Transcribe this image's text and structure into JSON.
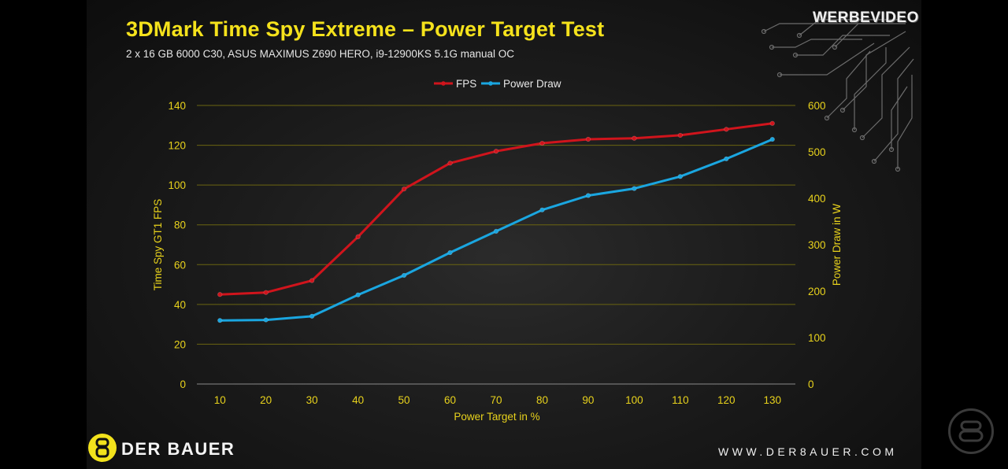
{
  "header": {
    "title": "3DMark Time Spy Extreme – Power Target Test",
    "subtitle": "2 x 16 GB 6000 C30, ASUS MAXIMUS Z690 HERO, i9-12900KS 5.1G manual OC"
  },
  "watermark": {
    "text": "WERBEVIDEO",
    "icon": "derbauer-8-badge-icon"
  },
  "footer": {
    "brand_name": "DER BAUER",
    "brand_icon": "derbauer-8-badge-icon",
    "url": "WWW.DER8AUER.COM"
  },
  "side_logo_icon": "derbauer-8-outline-icon",
  "colors": {
    "title": "#f5e21c",
    "axis_text": "#e8d21c",
    "fps_series": "#d0141c",
    "power_series": "#1aa6e0",
    "gridline": "#6b6510"
  },
  "chart_data": {
    "type": "line",
    "title": "3DMark Time Spy Extreme – Power Target Test",
    "subtitle": "2 x 16 GB 6000 C30, ASUS MAXIMUS Z690 HERO, i9-12900KS 5.1G manual OC",
    "xlabel": "Power Target in %",
    "ylabel": "Time Spy GT1 FPS",
    "y2label": "Power Draw in W",
    "x": [
      10,
      20,
      30,
      40,
      50,
      60,
      70,
      80,
      90,
      100,
      110,
      120,
      130
    ],
    "ylim": [
      0,
      140
    ],
    "yticks": [
      0,
      20,
      40,
      60,
      80,
      100,
      120,
      140
    ],
    "y2lim": [
      0,
      600
    ],
    "y2ticks": [
      0,
      100,
      200,
      300,
      400,
      500,
      600
    ],
    "grid": "horizontal",
    "legend_position": "top-center",
    "series": [
      {
        "name": "FPS",
        "axis": "left",
        "color": "#d0141c",
        "values": [
          45,
          46,
          52,
          74,
          98,
          111,
          117,
          121,
          123,
          123.5,
          125,
          128,
          131
        ]
      },
      {
        "name": "Power Draw",
        "axis": "right",
        "color": "#1aa6e0",
        "values": [
          137,
          138,
          146,
          192,
          234,
          283,
          329,
          375,
          406,
          421,
          447,
          485,
          527
        ]
      }
    ]
  }
}
